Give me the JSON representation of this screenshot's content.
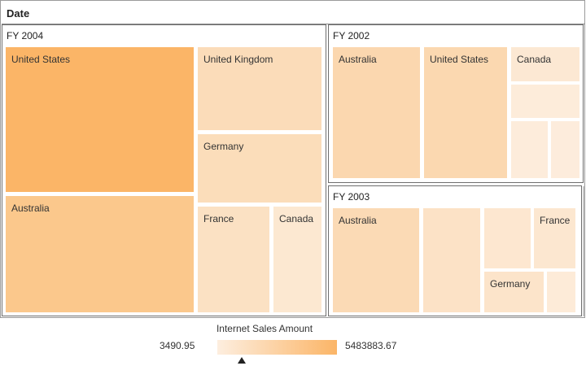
{
  "chart_data": {
    "type": "treemap",
    "title": "Date",
    "groups": [
      {
        "name": "FY 2004",
        "items": [
          {
            "label": "United States",
            "color": "#fbb567"
          },
          {
            "label": "Australia",
            "color": "#fbc88c"
          },
          {
            "label": "United Kingdom",
            "color": "#fbdcb9"
          },
          {
            "label": "Germany",
            "color": "#fbddba"
          },
          {
            "label": "France",
            "color": "#fbe1c3"
          },
          {
            "label": "Canada",
            "color": "#fce8d1"
          }
        ]
      },
      {
        "name": "FY 2002",
        "items": [
          {
            "label": "Australia",
            "color": "#fbd7af"
          },
          {
            "label": "United States",
            "color": "#fbd8b0"
          },
          {
            "label": "Canada",
            "color": "#fce8d3"
          },
          {
            "label": "",
            "color": "#fdecda"
          },
          {
            "label": "",
            "color": "#fdecdb"
          },
          {
            "label": "",
            "color": "#fdecdc"
          }
        ]
      },
      {
        "name": "FY 2003",
        "items": [
          {
            "label": "Australia",
            "color": "#fbdab5"
          },
          {
            "label": "",
            "color": "#fce2c6"
          },
          {
            "label": "",
            "color": "#fde7d0"
          },
          {
            "label": "France",
            "color": "#fce7d0"
          },
          {
            "label": "Germany",
            "color": "#fce4ca"
          },
          {
            "label": "",
            "color": "#fdebd8"
          }
        ]
      }
    ],
    "legend": {
      "title": "Internet Sales Amount",
      "min": "3490.95",
      "max": "5483883.67",
      "min_color": "#fdeedf",
      "max_color": "#fbb567"
    }
  }
}
